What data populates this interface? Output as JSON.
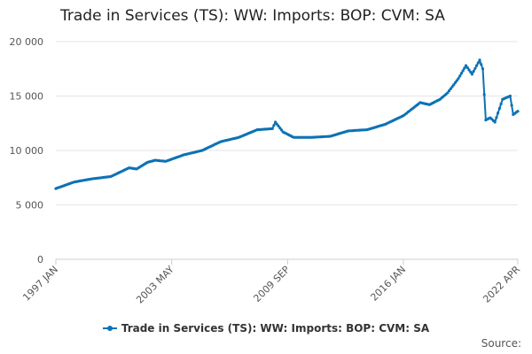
{
  "chart_data": {
    "type": "line",
    "title": "Trade in Services (TS): WW: Imports: BOP: CVM: SA",
    "xlabel": "",
    "ylabel": "",
    "x_start": "1997 JAN",
    "x_end": "2022 APR",
    "frequency": "monthly",
    "ylim": [
      0,
      20000
    ],
    "yticks": [
      0,
      5000,
      10000,
      15000,
      20000
    ],
    "ytick_labels": [
      "0",
      "5 000",
      "10 000",
      "15 000",
      "20 000"
    ],
    "xtick_labels": [
      "1997 JAN",
      "2003 MAY",
      "2009 SEP",
      "2016 JAN",
      "2022 APR"
    ],
    "grid": "horizontal",
    "legend_position": "bottom",
    "source_label": "Source:",
    "color": "#0c72b5",
    "series": [
      {
        "name": "Trade in Services (TS): WW: Imports: BOP: CVM: SA",
        "keypoints": [
          [
            "1997-01",
            6500
          ],
          [
            "1998-01",
            7100
          ],
          [
            "1999-01",
            7400
          ],
          [
            "2000-01",
            7600
          ],
          [
            "2001-01",
            8400
          ],
          [
            "2001-06",
            8300
          ],
          [
            "2002-01",
            8900
          ],
          [
            "2002-06",
            9100
          ],
          [
            "2003-01",
            9000
          ],
          [
            "2004-01",
            9600
          ],
          [
            "2005-01",
            10000
          ],
          [
            "2006-01",
            10800
          ],
          [
            "2007-01",
            11200
          ],
          [
            "2008-01",
            11900
          ],
          [
            "2008-11",
            12000
          ],
          [
            "2009-01",
            12600
          ],
          [
            "2009-06",
            11700
          ],
          [
            "2010-01",
            11200
          ],
          [
            "2011-01",
            11200
          ],
          [
            "2012-01",
            11300
          ],
          [
            "2013-01",
            11800
          ],
          [
            "2014-01",
            11900
          ],
          [
            "2015-01",
            12400
          ],
          [
            "2016-01",
            13200
          ],
          [
            "2016-12",
            14400
          ],
          [
            "2017-06",
            14200
          ],
          [
            "2018-01",
            14700
          ],
          [
            "2018-06",
            15300
          ],
          [
            "2019-01",
            16600
          ],
          [
            "2019-06",
            17800
          ],
          [
            "2019-10",
            17000
          ],
          [
            "2020-01",
            17800
          ],
          [
            "2020-03",
            18300
          ],
          [
            "2020-05",
            17500
          ],
          [
            "2020-07",
            12800
          ],
          [
            "2020-10",
            13000
          ],
          [
            "2021-01",
            12600
          ],
          [
            "2021-06",
            14700
          ],
          [
            "2021-11",
            15000
          ],
          [
            "2022-01",
            13300
          ],
          [
            "2022-04",
            13600
          ]
        ]
      }
    ]
  }
}
